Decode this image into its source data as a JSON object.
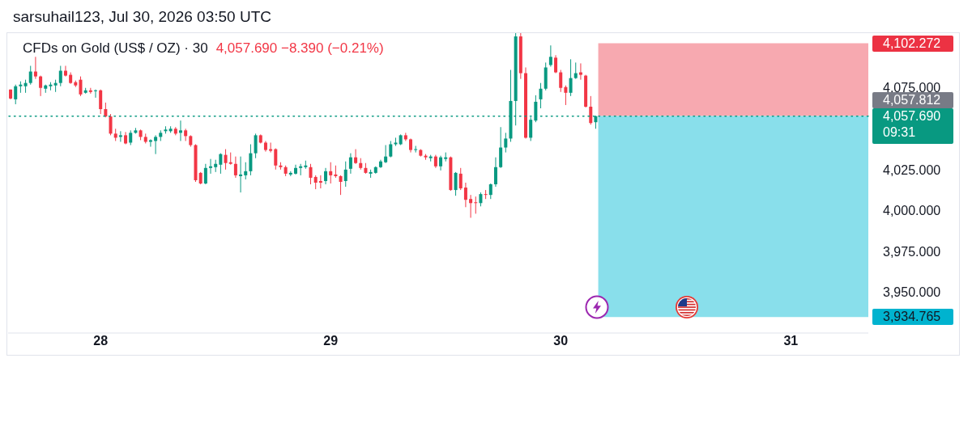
{
  "chart_data": {
    "type": "candlestick",
    "title": "CFDs on Gold (US$ / OZ) · 30",
    "subtitle": "4,057.690 −8.390 (−0.21%)",
    "annotations": [
      "sarsuhail123, Jul 30, 2026 03:50 UTC",
      "09:31",
      "4,102.272",
      "4,057.812",
      "3,934.765"
    ],
    "categories": [
      null,
      null,
      null,
      null,
      null,
      null,
      null,
      null,
      null,
      null,
      null,
      null,
      null,
      null,
      null,
      null,
      null,
      null,
      "28",
      null,
      null,
      null,
      null,
      null,
      null,
      null,
      null,
      null,
      null,
      null,
      null,
      null,
      null,
      null,
      null,
      null,
      null,
      null,
      null,
      null,
      null,
      null,
      null,
      null,
      null,
      null,
      null,
      null,
      null,
      null,
      null,
      null,
      null,
      null,
      null,
      null,
      null,
      null,
      null,
      null,
      null,
      null,
      null,
      null,
      "29",
      null,
      null,
      null,
      null,
      null,
      null,
      null,
      null,
      null,
      null,
      null,
      null,
      null,
      null,
      null,
      null,
      null,
      null,
      null,
      null,
      null,
      null,
      null,
      null,
      null,
      null,
      null,
      null,
      null,
      null,
      null,
      null,
      null,
      null,
      null,
      null,
      null,
      null,
      null,
      null,
      null,
      null,
      null,
      null,
      null,
      "30",
      null,
      null,
      null,
      null,
      null,
      null,
      null,
      null,
      null,
      null,
      null,
      null,
      null,
      null,
      null,
      null,
      null,
      null,
      null,
      null,
      null,
      null,
      null,
      null,
      null,
      null,
      null,
      null,
      null,
      null,
      null,
      null,
      null,
      null,
      null,
      null,
      null,
      null,
      null,
      null,
      null,
      null,
      null,
      null,
      null,
      "31",
      null,
      null,
      null,
      null,
      null,
      null,
      null,
      null,
      null,
      null,
      null,
      null,
      null,
      null,
      null
    ],
    "ohlc": [
      [
        4074,
        4074,
        4068,
        4068.5
      ],
      [
        4068,
        4077,
        4065,
        4076
      ],
      [
        4076,
        4079,
        4072,
        4077
      ],
      [
        4076,
        4080,
        4072,
        4078
      ],
      [
        4078,
        4088.5,
        4077,
        4085
      ],
      [
        4085,
        4094,
        4080.5,
        4082
      ],
      [
        4082,
        4082.5,
        4070,
        4075
      ],
      [
        4074.5,
        4077,
        4072,
        4076.5
      ],
      [
        4076,
        4078.5,
        4073.5,
        4077
      ],
      [
        4076.5,
        4080,
        4072.5,
        4078
      ],
      [
        4078,
        4088.5,
        4076,
        4085.5
      ],
      [
        4085.5,
        4088.5,
        4082,
        4082.5
      ],
      [
        4083,
        4084.5,
        4077.5,
        4078
      ],
      [
        4078.5,
        4079.5,
        4075.5,
        4076.5
      ],
      [
        4080,
        4082,
        4070,
        4071
      ],
      [
        4072,
        4075,
        4071.5,
        4073.5
      ],
      [
        4073.5,
        4075,
        4071.5,
        4072.5
      ],
      [
        4073,
        4074,
        4069,
        4073.5
      ],
      [
        4073.5,
        4074,
        4059,
        4062
      ],
      [
        4062,
        4066,
        4057,
        4057.5
      ],
      [
        4057.5,
        4059,
        4046,
        4047
      ],
      [
        4047,
        4050,
        4042.5,
        4044.5
      ],
      [
        4045,
        4048.5,
        4042,
        4046
      ],
      [
        4046,
        4048,
        4040.5,
        4041
      ],
      [
        4041.5,
        4049,
        4040,
        4047.5
      ],
      [
        4047.5,
        4050.5,
        4047,
        4049
      ],
      [
        4049,
        4049.5,
        4043,
        4045
      ],
      [
        4045,
        4047,
        4041,
        4042
      ],
      [
        4042,
        4043.5,
        4039,
        4043
      ],
      [
        4042.5,
        4046,
        4034.5,
        4045
      ],
      [
        4045,
        4049,
        4042.5,
        4047.5
      ],
      [
        4048.5,
        4051.5,
        4047,
        4049.5
      ],
      [
        4048.5,
        4051.5,
        4047.5,
        4050
      ],
      [
        4050,
        4051,
        4046,
        4047
      ],
      [
        4047.5,
        4055,
        4042.5,
        4049
      ],
      [
        4049,
        4050,
        4042.5,
        4045.5
      ],
      [
        4045.5,
        4046,
        4039,
        4040
      ],
      [
        4040,
        4040.5,
        4017.5,
        4018.5
      ],
      [
        4023,
        4023.5,
        4016,
        4016.5
      ],
      [
        4016.5,
        4028.5,
        4016,
        4026
      ],
      [
        4026,
        4031.5,
        4022.5,
        4027
      ],
      [
        4026.5,
        4031,
        4023.5,
        4028.5
      ],
      [
        4028,
        4035,
        4022.5,
        4034.5
      ],
      [
        4034,
        4037.5,
        4025,
        4029
      ],
      [
        4029.5,
        4035.5,
        4028,
        4028.5
      ],
      [
        4028.5,
        4033,
        4020,
        4021.5
      ],
      [
        4021,
        4033,
        4011,
        4022
      ],
      [
        4021.5,
        4029.5,
        4019,
        4024
      ],
      [
        4024,
        4040.5,
        4021.5,
        4035
      ],
      [
        4035,
        4047,
        4032,
        4046
      ],
      [
        4046,
        4046.5,
        4041,
        4041.5
      ],
      [
        4041.5,
        4042.5,
        4036,
        4037
      ],
      [
        4037.5,
        4041.5,
        4035.5,
        4036.5
      ],
      [
        4037.5,
        4038,
        4025,
        4027.5
      ],
      [
        4027.5,
        4029.5,
        4025,
        4026.5
      ],
      [
        4026.5,
        4027.5,
        4021,
        4022.5
      ],
      [
        4022,
        4024,
        4021,
        4023
      ],
      [
        4022.5,
        4028,
        4022,
        4026
      ],
      [
        4026,
        4028.5,
        4021.5,
        4027
      ],
      [
        4026.5,
        4030.5,
        4025.5,
        4027.5
      ],
      [
        4026.5,
        4028.5,
        4016,
        4020
      ],
      [
        4020.5,
        4021.5,
        4013,
        4017
      ],
      [
        4018,
        4021.5,
        4013.5,
        4017
      ],
      [
        4018,
        4026,
        4016,
        4024
      ],
      [
        4024,
        4029.5,
        4016.5,
        4021.5
      ],
      [
        4022,
        4027.5,
        4020,
        4021
      ],
      [
        4021,
        4021.5,
        4009.5,
        4017.5
      ],
      [
        4018,
        4030,
        4014.5,
        4025
      ],
      [
        4025.5,
        4035,
        4022.5,
        4032.5
      ],
      [
        4032.5,
        4037.5,
        4028.5,
        4029
      ],
      [
        4029,
        4032,
        4025,
        4026
      ],
      [
        4026,
        4029,
        4022.5,
        4023
      ],
      [
        4022.5,
        4025,
        4020,
        4023.5
      ],
      [
        4023,
        4027,
        4022.5,
        4026.5
      ],
      [
        4026.5,
        4031,
        4026,
        4030
      ],
      [
        4029.5,
        4040,
        4029,
        4033
      ],
      [
        4033,
        4042.5,
        4032.5,
        4040.5
      ],
      [
        4040.5,
        4044.5,
        4039.5,
        4041.5
      ],
      [
        4040.5,
        4046.5,
        4040,
        4046
      ],
      [
        4046,
        4047.5,
        4042.5,
        4043.5
      ],
      [
        4043.5,
        4044,
        4035.5,
        4037
      ],
      [
        4037,
        4039.5,
        4035.5,
        4037.5
      ],
      [
        4037,
        4037.5,
        4033,
        4033.5
      ],
      [
        4033.5,
        4034.5,
        4031,
        4032.5
      ],
      [
        4032,
        4034,
        4030,
        4033
      ],
      [
        4033,
        4034,
        4026,
        4027
      ],
      [
        4027,
        4033.5,
        4024.5,
        4032.5
      ],
      [
        4031.5,
        4035.5,
        4030,
        4032.5
      ],
      [
        4032.5,
        4033,
        4012,
        4012.5
      ],
      [
        4012.5,
        4023.5,
        4009,
        4023
      ],
      [
        4022.5,
        4026,
        4012.5,
        4013.5
      ],
      [
        4014,
        4017,
        4002,
        4006.5
      ],
      [
        4007,
        4009.5,
        3995.5,
        4004.5
      ],
      [
        4005,
        4008.5,
        3998,
        4004.5
      ],
      [
        4004.5,
        4011,
        4002.5,
        4010
      ],
      [
        4010,
        4012.5,
        4007,
        4009.5
      ],
      [
        4009.5,
        4016.5,
        4007,
        4016
      ],
      [
        4016,
        4032.5,
        4014.5,
        4026.5
      ],
      [
        4026.5,
        4051,
        4026,
        4038.5
      ],
      [
        4038.5,
        4047.5,
        4035.5,
        4044
      ],
      [
        4044,
        4086,
        4042,
        4067
      ],
      [
        4067,
        4108.5,
        4052,
        4106.5
      ],
      [
        4106.5,
        4108.5,
        4080.5,
        4084
      ],
      [
        4084,
        4087.5,
        4044,
        4044.5
      ],
      [
        4044.5,
        4057,
        4042.5,
        4055.5
      ],
      [
        4055,
        4070.5,
        4054,
        4066.5
      ],
      [
        4068,
        4078,
        4062.5,
        4074.5
      ],
      [
        4074.5,
        4090.5,
        4073.5,
        4087.5
      ],
      [
        4089,
        4101,
        4088,
        4094
      ],
      [
        4093.5,
        4095,
        4084,
        4084.5
      ],
      [
        4084.5,
        4086,
        4072.5,
        4075
      ],
      [
        4075.5,
        4076.5,
        4064.5,
        4072
      ],
      [
        4072,
        4092.5,
        4070,
        4081
      ],
      [
        4081,
        4090.5,
        4080.5,
        4084
      ],
      [
        4084.5,
        4090,
        4080,
        4083
      ],
      [
        4082.5,
        4083,
        4063,
        4063.5
      ],
      [
        4063.5,
        4070,
        4052.5,
        4053.5
      ],
      [
        4054,
        4058,
        4050,
        4057.69
      ],
      null,
      null,
      null,
      null,
      null,
      null,
      null,
      null,
      null,
      null,
      null,
      null,
      null,
      null,
      null,
      null,
      null,
      null,
      null,
      null,
      null,
      null,
      null,
      null,
      null,
      null,
      null,
      null,
      null,
      null,
      null,
      null,
      null,
      null,
      null,
      null,
      null,
      null,
      null,
      null,
      null,
      null,
      null,
      null,
      null,
      null,
      null,
      null,
      null,
      null,
      null,
      null,
      null,
      null
    ],
    "colors": [
      "#f23645",
      "#089981",
      "#089981",
      "#089981",
      "#089981",
      "#f23645",
      "#f23645",
      "#089981",
      "#089981",
      "#089981",
      "#089981",
      "#f23645",
      "#f23645",
      "#f23645",
      "#f23645",
      "#089981",
      "#f23645",
      "#089981",
      "#f23645",
      "#f23645",
      "#f23645",
      "#f23645",
      "#089981",
      "#f23645",
      "#089981",
      "#089981",
      "#f23645",
      "#f23645",
      "#089981",
      "#089981",
      "#089981",
      "#089981",
      "#089981",
      "#f23645",
      "#089981",
      "#f23645",
      "#f23645",
      "#f23645",
      "#f23645",
      "#089981",
      "#089981",
      "#089981",
      "#089981",
      "#f23645",
      "#f23645",
      "#f23645",
      "#089981",
      "#089981",
      "#089981",
      "#089981",
      "#f23645",
      "#f23645",
      "#f23645",
      "#f23645",
      "#f23645",
      "#f23645",
      "#089981",
      "#089981",
      "#089981",
      "#089981",
      "#f23645",
      "#f23645",
      "#f23645",
      "#089981",
      "#f23645",
      "#f23645",
      "#f23645",
      "#089981",
      "#089981",
      "#f23645",
      "#f23645",
      "#f23645",
      "#089981",
      "#089981",
      "#089981",
      "#089981",
      "#089981",
      "#089981",
      "#089981",
      "#f23645",
      "#f23645",
      "#089981",
      "#f23645",
      "#f23645",
      "#089981",
      "#f23645",
      "#089981",
      "#089981",
      "#f23645",
      "#089981",
      "#f23645",
      "#f23645",
      "#f23645",
      "#f23645",
      "#089981",
      "#f23645",
      "#089981",
      "#089981",
      "#089981",
      "#089981",
      "#089981",
      "#089981",
      "#f23645",
      "#f23645",
      "#089981",
      "#089981",
      "#089981",
      "#089981",
      "#089981",
      "#f23645",
      "#f23645",
      "#f23645",
      "#089981",
      "#089981",
      "#f23645",
      "#f23645",
      "#f23645",
      "#089981",
      null,
      null,
      null,
      null,
      null,
      null,
      null,
      null,
      null,
      null,
      null,
      null,
      null,
      null,
      null,
      null,
      null,
      null,
      null,
      null,
      null,
      null,
      null,
      null,
      null,
      null,
      null,
      null,
      null,
      null,
      null,
      null,
      null,
      null,
      null,
      null,
      null,
      null,
      null,
      null,
      null,
      null,
      null,
      null,
      null,
      null,
      null,
      null,
      null,
      null,
      null,
      null,
      null,
      null
    ],
    "ylim": [
      3925,
      4109
    ],
    "yticks": [
      {
        "value": 3950,
        "label": "3,950.000"
      },
      {
        "value": 3975,
        "label": "3,975.000"
      },
      {
        "value": 4000,
        "label": "4,000.000"
      },
      {
        "value": 4025,
        "label": "4,025.000"
      },
      {
        "value": 4075,
        "label": "4,075.000"
      }
    ],
    "ref_lines": [
      {
        "axis": "y",
        "value": 4057.69,
        "label": "4,057.690",
        "color": "#089981",
        "line_style": "dotted"
      }
    ],
    "bands": [
      {
        "axis": "y",
        "from": 4057.812,
        "to": 4102.272,
        "color": "#f7a9b0"
      },
      {
        "axis": "y",
        "from": 3934.765,
        "to": 4057.812,
        "color": "#89dfeb"
      }
    ]
  }
}
